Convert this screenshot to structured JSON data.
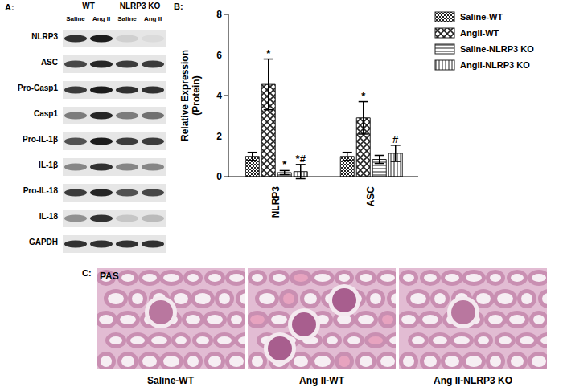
{
  "blot": {
    "label": "A:",
    "groups": [
      {
        "name": "WT",
        "lanes": [
          "Saline",
          "Ang II"
        ]
      },
      {
        "name": "NLRP3 KO",
        "lanes": [
          "Saline",
          "Ang II"
        ]
      }
    ],
    "rows": [
      {
        "protein": "NLRP3",
        "bands": [
          0.85,
          0.95,
          0.1,
          0.05
        ]
      },
      {
        "protein": "ASC",
        "bands": [
          0.75,
          0.9,
          0.8,
          0.8
        ]
      },
      {
        "protein": "Pro-Casp1",
        "bands": [
          0.8,
          0.95,
          0.85,
          0.85
        ]
      },
      {
        "protein": "Casp1",
        "bands": [
          0.5,
          0.9,
          0.5,
          0.55
        ]
      },
      {
        "protein": "Pro-IL-1β",
        "bands": [
          0.7,
          0.95,
          0.8,
          0.8
        ]
      },
      {
        "protein": "IL-1β",
        "bands": [
          0.45,
          0.85,
          0.45,
          0.45
        ]
      },
      {
        "protein": "Pro-IL-18",
        "bands": [
          0.8,
          0.9,
          0.7,
          0.75
        ]
      },
      {
        "protein": "IL-18",
        "bands": [
          0.4,
          0.85,
          0.15,
          0.2
        ]
      },
      {
        "protein": "GAPDH",
        "bands": [
          0.85,
          0.85,
          0.85,
          0.85
        ]
      }
    ]
  },
  "chart_data": {
    "label": "B:",
    "type": "bar",
    "categories": [
      "NLRP3",
      "ASC"
    ],
    "ylabel": [
      "Relative Expression",
      "(Protein)"
    ],
    "ylim": [
      0,
      8
    ],
    "yticks": [
      0,
      2,
      4,
      6,
      8
    ],
    "legend": "right",
    "series": [
      {
        "name": "Saline-WT",
        "color": "#222222",
        "values": [
          1.0,
          1.0
        ],
        "errors": [
          0.2,
          0.2
        ],
        "annotations": [
          null,
          null
        ]
      },
      {
        "name": "AngII-WT",
        "color": "#222222",
        "values": [
          4.55,
          2.9
        ],
        "errors": [
          1.25,
          0.8
        ],
        "annotations": [
          "*",
          "*"
        ]
      },
      {
        "name": "Saline-NLRP3 KO",
        "color": "#222222",
        "values": [
          0.2,
          0.85
        ],
        "errors": [
          0.1,
          0.2
        ],
        "annotations": [
          "*",
          null
        ]
      },
      {
        "name": "AngII-NLRP3 KO",
        "color": "#222222",
        "values": [
          0.25,
          1.15
        ],
        "errors": [
          0.35,
          0.4
        ],
        "annotations": [
          "*#",
          "#"
        ]
      }
    ]
  },
  "histology": {
    "label": "C:",
    "stain": "PAS",
    "images": [
      "Saline-WT",
      "Ang II-WT",
      "Ang II-NLRP3 KO"
    ]
  }
}
